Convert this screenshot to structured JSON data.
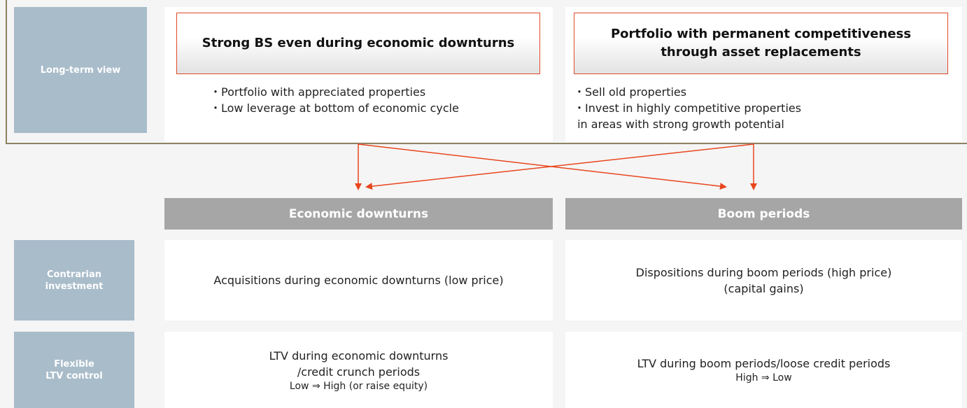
{
  "long_term": {
    "label": "Long-term view",
    "boxes": [
      {
        "title": [
          "Strong BS even during economic downturns"
        ],
        "bullets": [
          "・Portfolio with appreciated properties",
          "・Low leverage at bottom of economic cycle"
        ]
      },
      {
        "title": [
          "Portfolio with permanent competitiveness",
          "through asset replacements"
        ],
        "bullets": [
          "・Sell old properties",
          "・Invest in highly competitive properties",
          " in areas with strong growth potential"
        ]
      }
    ]
  },
  "columns": [
    "Economic downturns",
    "Boom periods"
  ],
  "rows": [
    {
      "label": [
        "Contrarian",
        "investment"
      ],
      "cells": [
        {
          "lines": [
            "Acquisitions during economic downturns (low price)"
          ]
        },
        {
          "lines": [
            "Dispositions during boom periods (high price)",
            "(capital gains)"
          ]
        }
      ]
    },
    {
      "label": [
        "Flexible",
        "LTV control"
      ],
      "cells": [
        {
          "lines": [
            "LTV during economic downturns",
            "/credit crunch periods"
          ],
          "note": "Low ⇒ High (or raise equity)"
        },
        {
          "lines": [
            "LTV during boom periods/loose credit periods"
          ],
          "note": "High ⇒ Low"
        }
      ]
    }
  ]
}
